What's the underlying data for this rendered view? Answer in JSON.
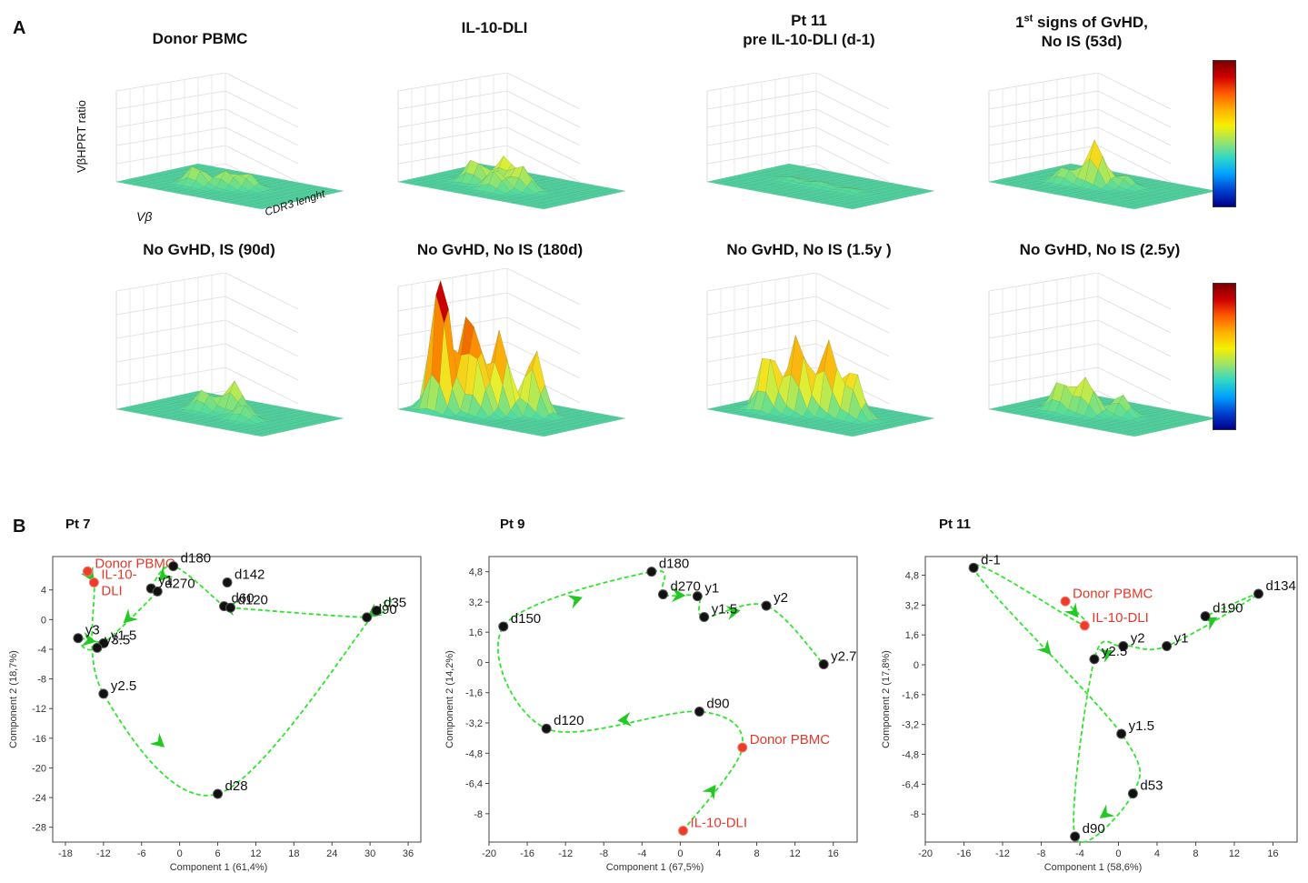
{
  "panel_labels": {
    "a": "A",
    "b": "B"
  },
  "section_a": {
    "row1_titles": [
      "Donor PBMC",
      "IL-10-DLI",
      "Pt 11\npre IL-10-DLI (d-1)",
      "1st signs of GvHD,\nNo IS (53d)"
    ],
    "row2_titles": [
      "No GvHD, IS (90d)",
      "No GvHD, No IS (180d)",
      "No GvHD, No IS (1.5y )",
      "No GvHD, No IS (2.5y)"
    ],
    "axis_z": "VβHPRT ratio",
    "axis_x": "Vβ",
    "axis_y": "CDR3 lenght",
    "colorbar": {
      "colors": [
        "#7a0000",
        "#ff5a00",
        "#f5f000",
        "#2fd7c8",
        "#00008a"
      ]
    }
  },
  "section_b": {
    "xlabels": [
      "Component 1 (61,4%)",
      "Component 1 (67,5%)",
      "Component 1 (58,6%)"
    ],
    "ylabels": [
      "Component 2 (18,7%)",
      "Component 2 (14,2%)",
      "Component 2 (17,8%)"
    ],
    "titles": [
      "Pt 7",
      "Pt 9",
      "Pt 11"
    ]
  },
  "chart_data": [
    {
      "type": "scatter",
      "title": "Pt 7",
      "xlabel": "Component 1 (61,4%)",
      "ylabel": "Component 2 (18,7%)",
      "xlim": [
        -20,
        38
      ],
      "ylim": [
        -30,
        8.5
      ],
      "xticks": [
        "-18",
        "-12",
        "-6",
        "0",
        "6",
        "12",
        "18",
        "24",
        "30",
        "36"
      ],
      "yticks": [
        "4",
        "0",
        "-4",
        "-8",
        "-12",
        "-16",
        "-20",
        "-24",
        "-28"
      ],
      "points": [
        {
          "label": "Donor PBMC",
          "x": -14.5,
          "y": 6.5,
          "color": "red"
        },
        {
          "label": "IL-10-\nDLI",
          "x": -13.5,
          "y": 5.0,
          "color": "red"
        },
        {
          "label": "d28",
          "x": 6,
          "y": -23.5,
          "color": "black"
        },
        {
          "label": "d35",
          "x": 31,
          "y": 1.2,
          "color": "black"
        },
        {
          "label": "d90",
          "x": 29.5,
          "y": 0.3,
          "color": "black"
        },
        {
          "label": "d60",
          "x": 7,
          "y": 1.8,
          "color": "black"
        },
        {
          "label": "d120",
          "x": 8,
          "y": 1.6,
          "color": "black"
        },
        {
          "label": "d142",
          "x": 7.5,
          "y": 5.0,
          "color": "black"
        },
        {
          "label": "d180",
          "x": -1,
          "y": 7.2,
          "color": "black"
        },
        {
          "label": "y1",
          "x": -4.5,
          "y": 4.2,
          "color": "black"
        },
        {
          "label": "d270",
          "x": -3.5,
          "y": 3.8,
          "color": "black"
        },
        {
          "label": "y1.5",
          "x": -12,
          "y": -3.2,
          "color": "black"
        },
        {
          "label": "y3",
          "x": -16,
          "y": -2.5,
          "color": "black"
        },
        {
          "label": "y3.5",
          "x": -13,
          "y": -3.8,
          "color": "black"
        },
        {
          "label": "y2.5",
          "x": -12,
          "y": -10,
          "color": "black"
        }
      ]
    },
    {
      "type": "scatter",
      "title": "Pt 9",
      "xlabel": "Component 1 (67,5%)",
      "ylabel": "Component 2 (14,2%)",
      "xlim": [
        -20,
        18.5
      ],
      "ylim": [
        -9.5,
        5.6
      ],
      "xticks": [
        "-20",
        "-16",
        "-12",
        "-8",
        "-4",
        "0",
        "4",
        "8",
        "12",
        "16"
      ],
      "yticks": [
        "4,8",
        "3,2",
        "1,6",
        "0",
        "-1,6",
        "-3,2",
        "-4,8",
        "-6,4",
        "-8"
      ],
      "points": [
        {
          "label": "d180",
          "x": -3,
          "y": 4.8,
          "color": "black"
        },
        {
          "label": "d270",
          "x": -1.8,
          "y": 3.6,
          "color": "black"
        },
        {
          "label": "y1",
          "x": 1.8,
          "y": 3.5,
          "color": "black"
        },
        {
          "label": "y1.5",
          "x": 2.5,
          "y": 2.4,
          "color": "black"
        },
        {
          "label": "y2",
          "x": 9,
          "y": 3.0,
          "color": "black"
        },
        {
          "label": "y2.7",
          "x": 15,
          "y": -0.1,
          "color": "black"
        },
        {
          "label": "d150",
          "x": -18.5,
          "y": 1.9,
          "color": "black"
        },
        {
          "label": "d120",
          "x": -14,
          "y": -3.5,
          "color": "black"
        },
        {
          "label": "d90",
          "x": 2,
          "y": -2.6,
          "color": "black"
        },
        {
          "label": "Donor PBMC",
          "x": 6.5,
          "y": -4.5,
          "color": "red"
        },
        {
          "label": "IL-10-DLI",
          "x": 0.3,
          "y": -8.9,
          "color": "red"
        }
      ]
    },
    {
      "type": "scatter",
      "title": "Pt 11",
      "xlabel": "Component 1 (58,6%)",
      "ylabel": "Component 2 (17,8%)",
      "xlim": [
        -20,
        18.5
      ],
      "ylim": [
        -9.5,
        5.8
      ],
      "xticks": [
        "-20",
        "-16",
        "-12",
        "-8",
        "-4",
        "0",
        "4",
        "8",
        "12",
        "16"
      ],
      "yticks": [
        "4,8",
        "3,2",
        "1,6",
        "0",
        "-1,6",
        "-3,2",
        "-4,8",
        "-6,4",
        "-8"
      ],
      "points": [
        {
          "label": "d-1",
          "x": -15,
          "y": 5.2,
          "color": "black"
        },
        {
          "label": "Donor PBMC",
          "x": -5.5,
          "y": 3.4,
          "color": "red"
        },
        {
          "label": "IL-10-DLI",
          "x": -3.5,
          "y": 2.1,
          "color": "red"
        },
        {
          "label": "d134",
          "x": 14.5,
          "y": 3.8,
          "color": "black"
        },
        {
          "label": "d190",
          "x": 9,
          "y": 2.6,
          "color": "black"
        },
        {
          "label": "y1",
          "x": 5,
          "y": 1.0,
          "color": "black"
        },
        {
          "label": "y2",
          "x": 0.5,
          "y": 1.0,
          "color": "black"
        },
        {
          "label": "y2.5",
          "x": -2.5,
          "y": 0.3,
          "color": "black"
        },
        {
          "label": "y1.5",
          "x": 0.3,
          "y": -3.7,
          "color": "black"
        },
        {
          "label": "d53",
          "x": 1.5,
          "y": -6.9,
          "color": "black"
        },
        {
          "label": "d90",
          "x": -4.5,
          "y": -9.2,
          "color": "black"
        }
      ]
    }
  ]
}
